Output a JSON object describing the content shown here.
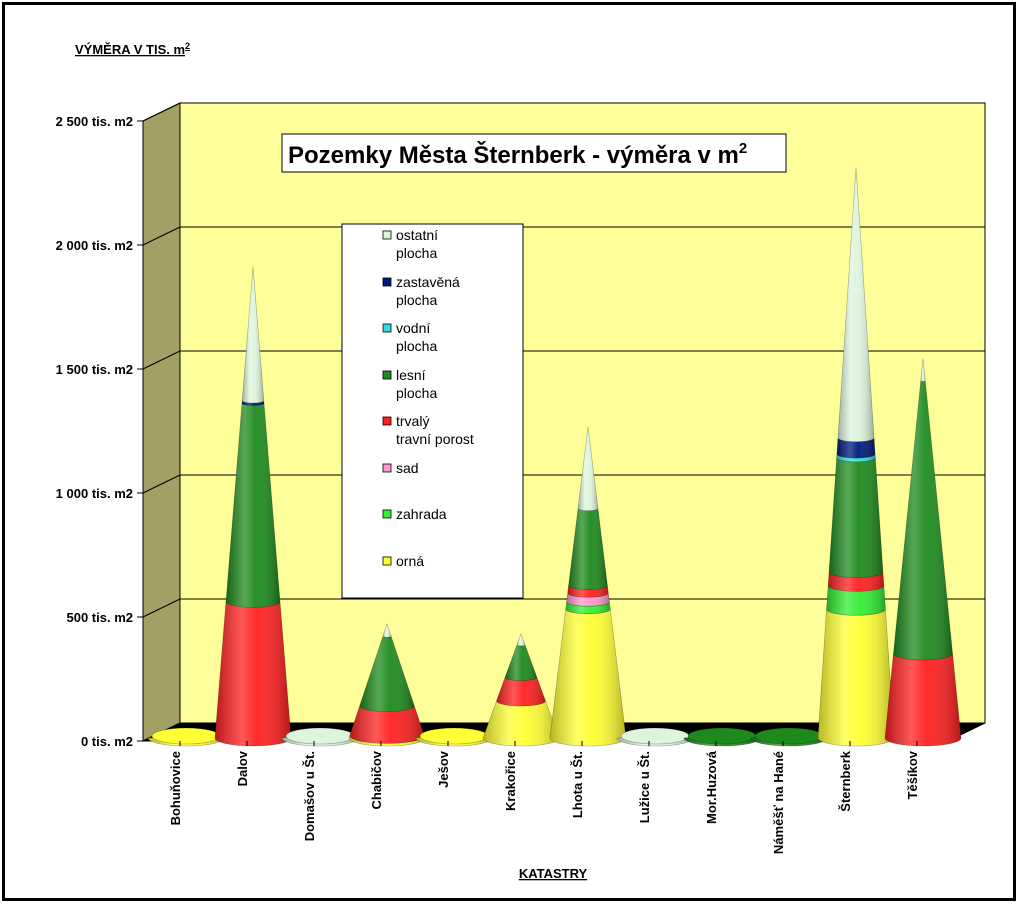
{
  "chart_data": {
    "type": "bar",
    "shape": "cone",
    "title": "Pozemky Města Šternberk - výměra v m",
    "title_superscript": "2",
    "ylabel": "VÝMĚRA V TIS. m",
    "ylabel_superscript": "2",
    "xlabel": "KATASTRY",
    "ylim": [
      0,
      2500
    ],
    "yticks": [
      {
        "value": 0,
        "label": "0 tis. m2"
      },
      {
        "value": 500,
        "label": "500 tis. m2"
      },
      {
        "value": 1000,
        "label": "1 000 tis. m2"
      },
      {
        "value": 1500,
        "label": "1 500 tis. m2"
      },
      {
        "value": 2000,
        "label": "2 000 tis. m2"
      },
      {
        "value": 2500,
        "label": "2 500 tis. m2"
      }
    ],
    "grid": true,
    "legend_position": "center",
    "categories": [
      "Bohuňovice",
      "Dalov",
      "Domašov u Št.",
      "Chabičov",
      "Ješov",
      "Krakořice",
      "Lhota u Št.",
      "Lužice u Št.",
      "Mor.Huzová",
      "Náměšť na Hané",
      "Šternberk",
      "Těšíkov"
    ],
    "series": [
      {
        "name": "orná",
        "color": "#ffff33",
        "values": [
          10,
          0,
          0,
          10,
          15,
          150,
          520,
          0,
          0,
          0,
          520,
          0
        ]
      },
      {
        "name": "zahrada",
        "color": "#33ee33",
        "values": [
          0,
          0,
          0,
          0,
          0,
          0,
          30,
          0,
          0,
          0,
          95,
          0
        ]
      },
      {
        "name": "sad",
        "color": "#ff99cc",
        "values": [
          0,
          0,
          0,
          0,
          0,
          0,
          35,
          0,
          0,
          0,
          0,
          0
        ]
      },
      {
        "name": "trvalý travní porost",
        "color": "#ff2020",
        "values": [
          0,
          550,
          0,
          120,
          0,
          95,
          30,
          0,
          0,
          0,
          55,
          340
        ]
      },
      {
        "name": "lesní plocha",
        "color": "#1e8a1e",
        "values": [
          0,
          800,
          0,
          280,
          0,
          130,
          310,
          0,
          15,
          10,
          460,
          1100
        ]
      },
      {
        "name": "vodní plocha",
        "color": "#33dddd",
        "values": [
          0,
          0,
          0,
          0,
          0,
          0,
          0,
          0,
          0,
          0,
          15,
          0
        ]
      },
      {
        "name": "zastavěná plocha",
        "color": "#001a7a",
        "values": [
          0,
          10,
          0,
          0,
          0,
          0,
          0,
          0,
          0,
          0,
          65,
          0
        ]
      },
      {
        "name": "ostatní plocha",
        "color": "#ddf5dd",
        "values": [
          0,
          540,
          15,
          50,
          0,
          45,
          330,
          15,
          0,
          0,
          1090,
          90
        ]
      }
    ]
  },
  "legend": {
    "items": [
      {
        "label_lines": [
          "ostatní",
          "plocha"
        ],
        "color": "#ddf5dd"
      },
      {
        "label_lines": [
          "zastavěná",
          "plocha"
        ],
        "color": "#001a7a"
      },
      {
        "label_lines": [
          "vodní",
          "plocha"
        ],
        "color": "#33dddd"
      },
      {
        "label_lines": [
          "lesní",
          "plocha"
        ],
        "color": "#1e8a1e"
      },
      {
        "label_lines": [
          "trvalý",
          "travní porost"
        ],
        "color": "#ff2020"
      },
      {
        "label_lines": [
          "sad"
        ],
        "color": "#ff99cc"
      },
      {
        "label_lines": [
          "zahrada"
        ],
        "color": "#33ee33"
      },
      {
        "label_lines": [
          "orná"
        ],
        "color": "#ffff33"
      }
    ]
  },
  "colors": {
    "plot_background": "#ffff99",
    "side_wall": "#a3a066",
    "floor": "#000000",
    "grid": "#000000"
  }
}
